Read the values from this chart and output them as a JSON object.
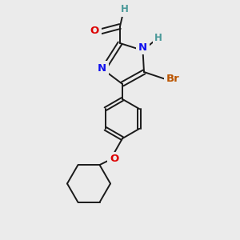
{
  "background_color": "#ebebeb",
  "bond_color": "#1a1a1a",
  "bond_width": 1.4,
  "atom_colors": {
    "C": "#1a1a1a",
    "N": "#1010ee",
    "O": "#dd0000",
    "Br": "#bb5500",
    "H": "#4a9999"
  },
  "figsize": [
    3.0,
    3.0
  ],
  "dpi": 100,
  "xlim": [
    0,
    10
  ],
  "ylim": [
    0,
    10
  ],
  "font_size": 9.5,
  "font_size_H": 8.5
}
